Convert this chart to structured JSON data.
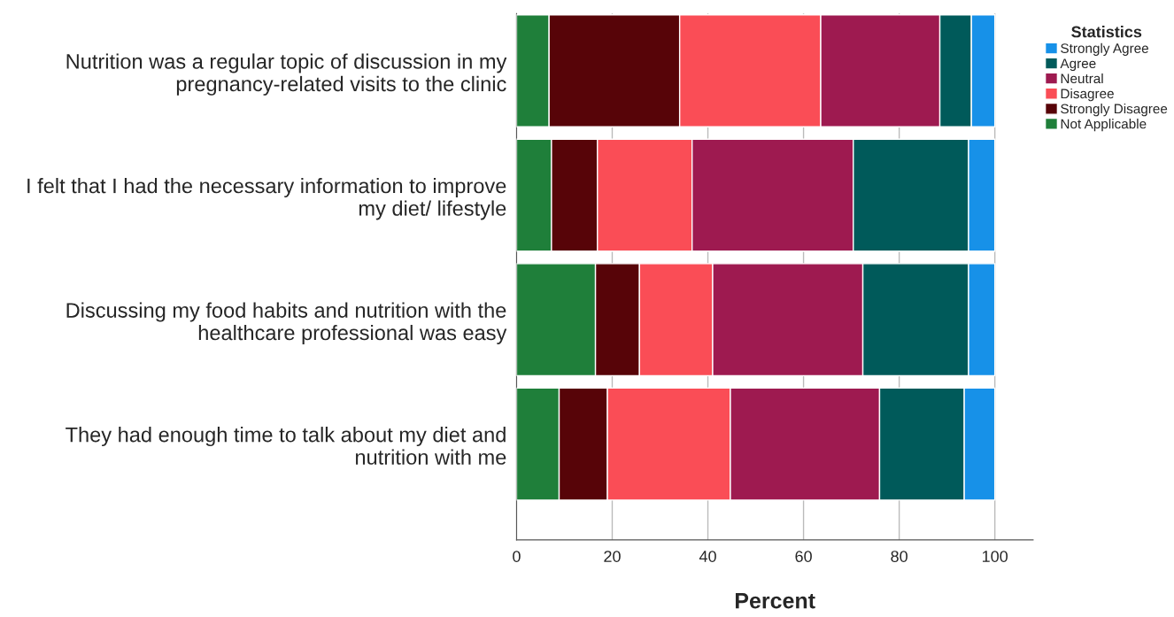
{
  "chart_data": {
    "type": "bar",
    "orientation": "horizontal",
    "stacked": true,
    "categories": [
      "Nutrition was a regular topic of discussion in my\npregnancy-related visits to the clinic",
      "I felt that I had the necessary information to improve\nmy diet/ lifestyle",
      "Discussing my food habits and nutrition with the\nhealthcare professional was easy",
      "They had enough time to talk about my diet and\nnutrition with me"
    ],
    "series": [
      {
        "name": "Not Applicable",
        "color": "#1f7f3a",
        "values": [
          6.8,
          7.3,
          16.5,
          8.9
        ]
      },
      {
        "name": "Strongly Disagree",
        "color": "#570408",
        "values": [
          27.3,
          9.6,
          9.2,
          10.1
        ]
      },
      {
        "name": "Disagree",
        "color": "#fa4d56",
        "values": [
          29.5,
          19.8,
          15.3,
          25.7
        ]
      },
      {
        "name": "Neutral",
        "color": "#9e1a50",
        "values": [
          24.9,
          33.7,
          31.4,
          31.2
        ]
      },
      {
        "name": "Agree",
        "color": "#005a5a",
        "values": [
          6.6,
          24.1,
          22.1,
          17.7
        ]
      },
      {
        "name": "Strongly Agree",
        "color": "#1791e8",
        "values": [
          4.9,
          5.5,
          5.5,
          6.4
        ]
      }
    ],
    "xlabel": "Percent",
    "legend_title": "Statistics",
    "legend": "top right",
    "xlim": [
      0,
      108
    ],
    "xticks": [
      0,
      20,
      40,
      60,
      80,
      100
    ],
    "grid": "x"
  }
}
